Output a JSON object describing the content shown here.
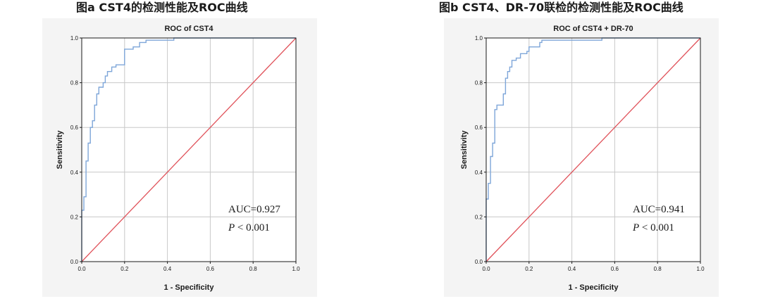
{
  "figures": {
    "a": {
      "caption": "图a CST4的检测性能及ROC曲线",
      "auc_text": "AUC=0.927",
      "p_symbol": "P",
      "p_rest": " < 0.001"
    },
    "b": {
      "caption": "图b CST4、DR-70联检的检测性能及ROC曲线",
      "auc_text": "AUC=0.941",
      "p_symbol": "P",
      "p_rest": " < 0.001"
    }
  },
  "colors": {
    "roc_curve": "#7ea6d9",
    "reference_line": "#e0525a",
    "grid": "#c8c8c8",
    "axes": "#1a1a1a",
    "plot_bg": "#ffffff",
    "panel_bg": "#f4f4f4"
  },
  "chart_data": [
    {
      "type": "line",
      "title": "ROC  of  CST4",
      "xlabel": "1 - Specificity",
      "ylabel": "Sensitivity",
      "xlim": [
        0,
        1
      ],
      "ylim": [
        0,
        1
      ],
      "xticks": [
        "0.0",
        "0.2",
        "0.4",
        "0.6",
        "0.8",
        "1.0"
      ],
      "yticks": [
        "0.0",
        "0.2",
        "0.4",
        "0.6",
        "0.8",
        "1.0"
      ],
      "grid": true,
      "series": [
        {
          "x": [
            0,
            0,
            0.01,
            0.01,
            0.02,
            0.02,
            0.03,
            0.03,
            0.04,
            0.04,
            0.05,
            0.05,
            0.06,
            0.06,
            0.07,
            0.07,
            0.08,
            0.08,
            0.1,
            0.1,
            0.11,
            0.11,
            0.12,
            0.12,
            0.14,
            0.14,
            0.16,
            0.16,
            0.2,
            0.2,
            0.24,
            0.24,
            0.27,
            0.27,
            0.3,
            0.3,
            0.43,
            0.43,
            1.0
          ],
          "y": [
            0,
            0.23,
            0.23,
            0.29,
            0.29,
            0.45,
            0.45,
            0.53,
            0.53,
            0.6,
            0.6,
            0.63,
            0.63,
            0.7,
            0.7,
            0.75,
            0.75,
            0.78,
            0.78,
            0.8,
            0.8,
            0.83,
            0.83,
            0.85,
            0.85,
            0.87,
            0.87,
            0.88,
            0.88,
            0.95,
            0.95,
            0.96,
            0.96,
            0.98,
            0.98,
            0.99,
            0.99,
            1.0,
            1.0
          ]
        },
        {
          "x": [
            0,
            1
          ],
          "y": [
            0,
            1
          ]
        }
      ],
      "annotations": [
        "AUC=0.927",
        "P < 0.001"
      ]
    },
    {
      "type": "line",
      "title": "ROC of CST4 + DR-70",
      "xlabel": "1 - Specificity",
      "ylabel": "Sensitivity",
      "xlim": [
        0,
        1
      ],
      "ylim": [
        0,
        1
      ],
      "xticks": [
        "0.0",
        "0.2",
        "0.4",
        "0.6",
        "0.8",
        "1.0"
      ],
      "yticks": [
        "0.0",
        "0.2",
        "0.4",
        "0.6",
        "0.8",
        "1.0"
      ],
      "grid": true,
      "series": [
        {
          "x": [
            0,
            0,
            0.01,
            0.01,
            0.02,
            0.02,
            0.03,
            0.03,
            0.04,
            0.04,
            0.05,
            0.05,
            0.08,
            0.08,
            0.09,
            0.09,
            0.1,
            0.1,
            0.11,
            0.11,
            0.12,
            0.12,
            0.14,
            0.14,
            0.16,
            0.16,
            0.19,
            0.19,
            0.2,
            0.2,
            0.25,
            0.25,
            0.26,
            0.26,
            0.54,
            0.54,
            1.0
          ],
          "y": [
            0,
            0.28,
            0.28,
            0.35,
            0.35,
            0.47,
            0.47,
            0.53,
            0.53,
            0.68,
            0.68,
            0.7,
            0.7,
            0.75,
            0.75,
            0.82,
            0.82,
            0.85,
            0.85,
            0.87,
            0.87,
            0.9,
            0.9,
            0.91,
            0.91,
            0.93,
            0.93,
            0.94,
            0.94,
            0.96,
            0.96,
            0.98,
            0.98,
            0.99,
            0.99,
            1.0,
            1.0
          ]
        },
        {
          "x": [
            0,
            1
          ],
          "y": [
            0,
            1
          ]
        }
      ],
      "annotations": [
        "AUC=0.941",
        "P < 0.001"
      ]
    }
  ]
}
